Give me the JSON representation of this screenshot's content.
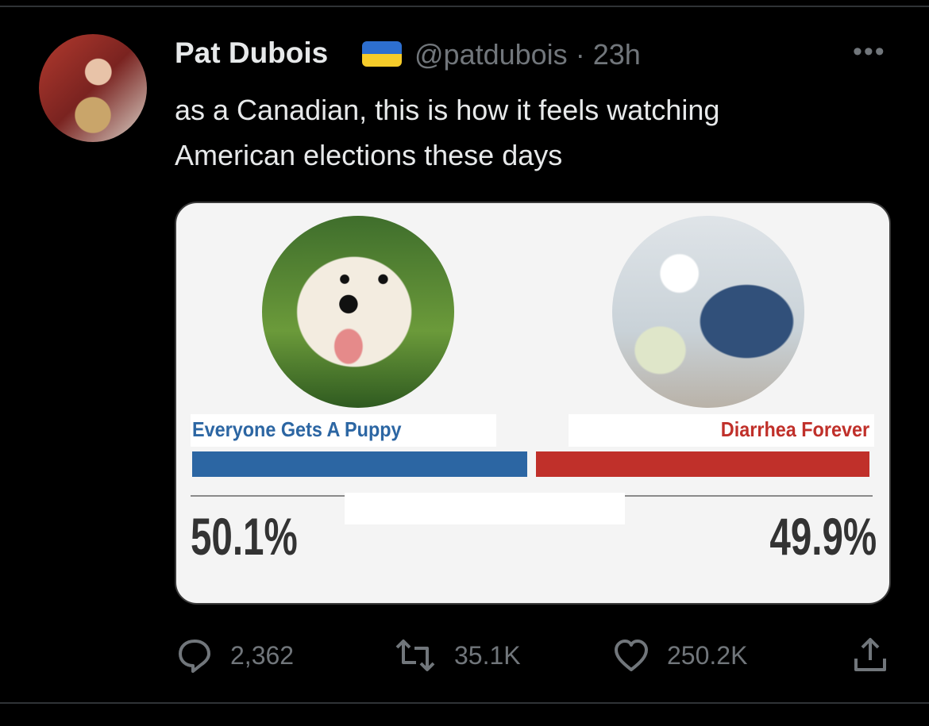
{
  "tweet": {
    "author_name": "Pat Dubois",
    "flag_icon": "ukraine-flag-icon",
    "flag_colors": [
      "#2d6fd0",
      "#f6cc2a"
    ],
    "handle": "@patdubois",
    "separator": "·",
    "time": "23h",
    "more_label": "•••",
    "text_line1": "as a Canadian, this is how it feels watching",
    "text_line2": "American elections these days"
  },
  "card": {
    "left_candidate": {
      "name": "Everyone Gets A Puppy",
      "percent": "50.1%",
      "share": 50.1,
      "color": "#2c66a3"
    },
    "right_candidate": {
      "name": "Diarrhea Forever",
      "percent": "49.9%",
      "share": 49.9,
      "color": "#c0302a"
    }
  },
  "actions": {
    "replies": "2,362",
    "retweets": "35.1K",
    "likes": "250.2K"
  }
}
